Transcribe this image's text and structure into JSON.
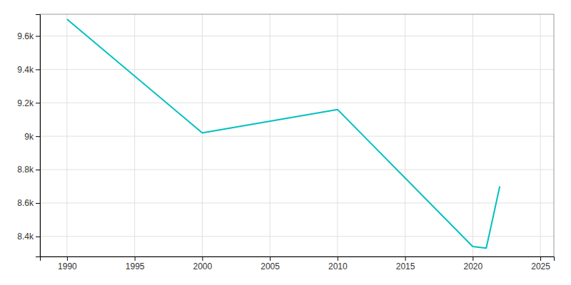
{
  "chart_data": {
    "type": "line",
    "x": [
      1990,
      2000,
      2010,
      2020,
      2021,
      2022
    ],
    "values": [
      9700,
      9020,
      9160,
      8340,
      8330,
      8700
    ],
    "color": "#00C0C0",
    "xlim": [
      1988,
      2026
    ],
    "ylim": [
      8280,
      9730
    ],
    "xticks": [
      1990,
      1995,
      2000,
      2005,
      2010,
      2015,
      2020,
      2025
    ],
    "yticks": [
      {
        "value": 8400,
        "label": "8.4k"
      },
      {
        "value": 8600,
        "label": "8.6k"
      },
      {
        "value": 8800,
        "label": "8.8k"
      },
      {
        "value": 9000,
        "label": "9k"
      },
      {
        "value": 9200,
        "label": "9.2k"
      },
      {
        "value": 9400,
        "label": "9.4k"
      },
      {
        "value": 9600,
        "label": "9.6k"
      }
    ],
    "grid": true
  }
}
